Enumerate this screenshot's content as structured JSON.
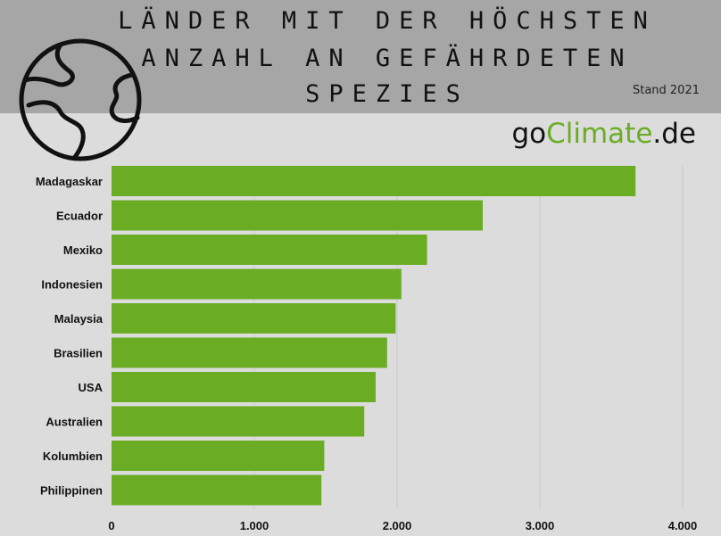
{
  "header": {
    "title_lines": [
      "LÄNDER MIT DER HÖCHSTEN",
      "ANZAHL AN GEFÄHRDETEN",
      "SPEZIES"
    ],
    "stand": "Stand 2021",
    "brand_prefix": "go",
    "brand_accent": "Climate",
    "brand_suffix": ".de"
  },
  "colors": {
    "bar": "#6aad24",
    "header_bg": "#a6a6a6",
    "plot_bg": "#dcdcdc",
    "brand_accent": "#6aad24"
  },
  "icons": {
    "logo": "globe-icon"
  },
  "chart_data": {
    "type": "bar",
    "orientation": "horizontal",
    "categories": [
      "Madagaskar",
      "Ecuador",
      "Mexiko",
      "Indonesien",
      "Malaysia",
      "Brasilien",
      "USA",
      "Australien",
      "Kolumbien",
      "Philippinen"
    ],
    "values": [
      3670,
      2600,
      2210,
      2030,
      1990,
      1930,
      1850,
      1770,
      1490,
      1470
    ],
    "xlim": [
      0,
      4000
    ],
    "xticks": [
      0,
      1000,
      2000,
      3000,
      4000
    ],
    "xtick_labels": [
      "0",
      "1.000",
      "2.000",
      "3.000",
      "4.000"
    ],
    "grid": "vertical",
    "legend": "none"
  }
}
